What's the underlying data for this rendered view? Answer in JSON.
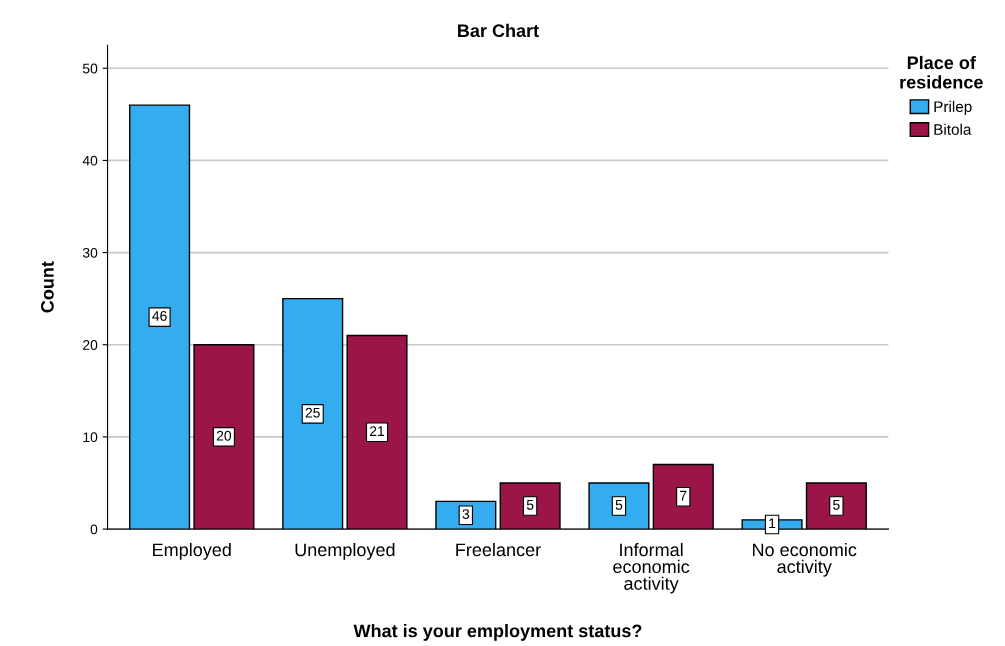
{
  "chart_data": {
    "type": "bar",
    "title": "Bar Chart",
    "xlabel": "What is your employment status?",
    "ylabel": "Count",
    "legend_title": "Place of\nresidence",
    "categories": [
      "Employed",
      "Unemployed",
      "Freelancer",
      "Informal\neconomic\nactivity",
      "No economic\nactivity"
    ],
    "series": [
      {
        "name": "Prilep",
        "color": "#33adf0",
        "values": [
          46,
          25,
          3,
          5,
          1
        ]
      },
      {
        "name": "Bitola",
        "color": "#9c1549",
        "values": [
          20,
          21,
          5,
          7,
          5
        ]
      }
    ],
    "ylim": [
      0,
      52.5
    ],
    "yticks": [
      0,
      10,
      20,
      30,
      40,
      50
    ],
    "grid": "y",
    "legend": "top right",
    "data_labels": true
  }
}
